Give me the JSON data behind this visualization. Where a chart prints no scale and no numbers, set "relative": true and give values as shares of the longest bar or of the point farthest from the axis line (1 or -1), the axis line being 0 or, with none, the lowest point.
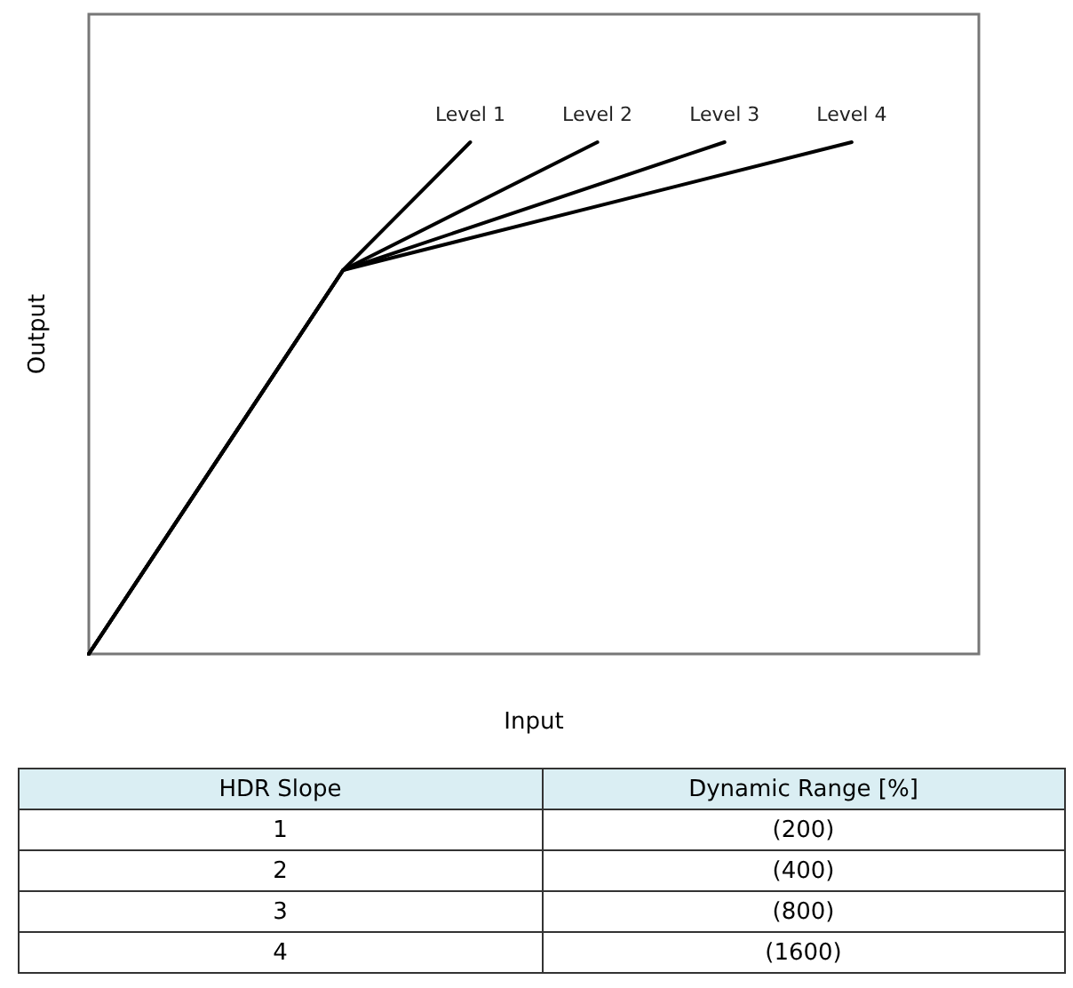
{
  "chart_data": {
    "type": "line",
    "relative": true,
    "xlabel": "Input",
    "ylabel": "Output",
    "categories": [
      null,
      null,
      null,
      null,
      null,
      null,
      null,
      null
    ],
    "tick_labels": false,
    "grid": false,
    "legend": false,
    "marker": "none",
    "line_style": "solid",
    "series": [
      {
        "name": "Level 1",
        "color": "#000000",
        "values": [
          0,
          null,
          0.75,
          1,
          null,
          null,
          null,
          null
        ]
      },
      {
        "name": "Level 2",
        "color": "#000000",
        "values": [
          0,
          null,
          0.75,
          null,
          1,
          null,
          null,
          null
        ]
      },
      {
        "name": "Level 3",
        "color": "#000000",
        "values": [
          0,
          null,
          0.75,
          null,
          null,
          1,
          null,
          null
        ]
      },
      {
        "name": "Level 4",
        "color": "#000000",
        "values": [
          0,
          null,
          0.75,
          null,
          null,
          null,
          1,
          null
        ]
      }
    ],
    "annotations": [
      "HDR Slope",
      "Dynamic Range [%]",
      "1",
      "(200)",
      "2",
      "(400)",
      "3",
      "(800)",
      "4",
      "(1600)"
    ]
  }
}
